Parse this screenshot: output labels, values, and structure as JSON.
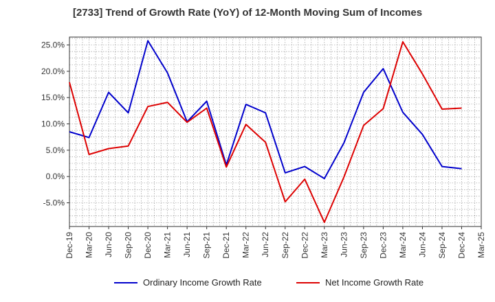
{
  "chart_data": {
    "type": "line",
    "title": "[2733]  Trend of Growth Rate (YoY) of 12-Month Moving Sum of Incomes",
    "xlabel": "",
    "ylabel": "",
    "categories": [
      "Dec-19",
      "Mar-20",
      "Jun-20",
      "Sep-20",
      "Dec-20",
      "Mar-21",
      "Jun-21",
      "Sep-21",
      "Dec-21",
      "Mar-22",
      "Jun-22",
      "Sep-22",
      "Dec-22",
      "Mar-23",
      "Jun-23",
      "Sep-23",
      "Dec-23",
      "Mar-24",
      "Jun-24",
      "Sep-24",
      "Dec-24",
      "Mar-25"
    ],
    "ylim": [
      -9.5,
      26.5
    ],
    "yticks": [
      25.0,
      20.0,
      15.0,
      10.0,
      5.0,
      0.0,
      -5.0
    ],
    "ytick_labels": [
      "25.0%",
      "20.0%",
      "15.0%",
      "10.0%",
      "5.0%",
      "0.0%",
      "-5.0%"
    ],
    "grid": true,
    "legend_position": "bottom",
    "series": [
      {
        "name": "Ordinary Income Growth Rate",
        "color": "#0000cc",
        "values": [
          8.5,
          7.4,
          16.0,
          12.1,
          25.8,
          19.7,
          10.4,
          14.3,
          2.2,
          13.7,
          12.1,
          0.7,
          1.9,
          -0.4,
          6.4,
          16.0,
          20.5,
          12.2,
          8.0,
          1.9,
          1.5,
          null
        ]
      },
      {
        "name": "Net Income Growth Rate",
        "color": "#dd0000",
        "values": [
          17.9,
          4.2,
          5.3,
          5.8,
          13.3,
          14.1,
          10.3,
          13.0,
          1.8,
          9.9,
          6.5,
          -4.8,
          -0.5,
          -8.7,
          -0.1,
          9.7,
          12.9,
          25.6,
          19.5,
          12.8,
          13.0,
          null
        ]
      }
    ]
  }
}
